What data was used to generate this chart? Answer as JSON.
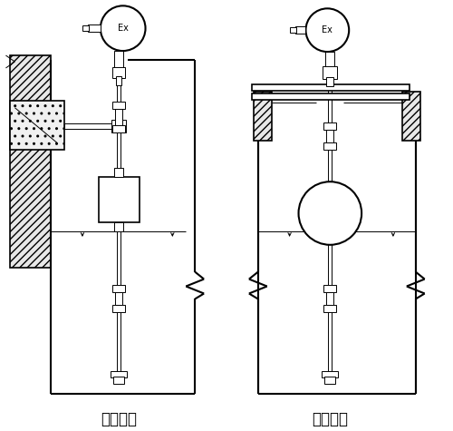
{
  "bg_color": "#ffffff",
  "line_color": "#000000",
  "label_left": "架装固定",
  "label_right": "法兰固定",
  "label_fontsize": 12,
  "fig_width": 5.0,
  "fig_height": 4.75
}
